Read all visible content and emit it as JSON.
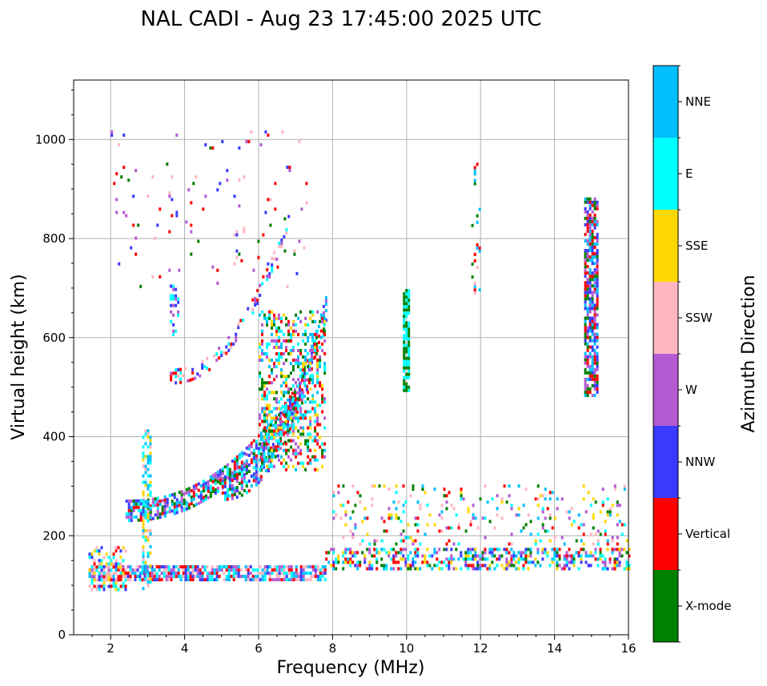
{
  "chart_data": {
    "type": "scatter",
    "title": "NAL CADI - Aug 23 17:45:00 2025 UTC",
    "xlabel": "Frequency (MHz)",
    "ylabel": "Virtual height (km)",
    "xlim": [
      1,
      16
    ],
    "ylim": [
      0,
      1120
    ],
    "xticks": [
      2,
      4,
      6,
      8,
      10,
      12,
      14,
      16
    ],
    "xtick_labels": [
      "2",
      "4",
      "6",
      "8",
      "10",
      "12",
      "14",
      "16"
    ],
    "yticks": [
      0,
      200,
      400,
      600,
      800,
      1000
    ],
    "ytick_labels": [
      "0",
      "200",
      "400",
      "600",
      "800",
      "1000"
    ],
    "grid": true,
    "colorbar": {
      "title": "Azimuth Direction",
      "categories": [
        {
          "label": "X-mode",
          "color": "#008000"
        },
        {
          "label": "Vertical",
          "color": "#ff0000"
        },
        {
          "label": "NNW",
          "color": "#3a3aff"
        },
        {
          "label": "W",
          "color": "#b45ad2"
        },
        {
          "label": "SSW",
          "color": "#ffb6c1"
        },
        {
          "label": "SSE",
          "color": "#ffd700"
        },
        {
          "label": "E",
          "color": "#00ffff"
        },
        {
          "label": "NNE",
          "color": "#00bfff"
        }
      ]
    },
    "bands": [
      {
        "name": "E-layer trace",
        "f": [
          1.4,
          7.8
        ],
        "h": [
          108,
          138
        ],
        "azimuths": [
          "NNW",
          "Vertical",
          "W",
          "NNE",
          "E",
          "SSW"
        ],
        "density": 0.75
      },
      {
        "name": "Low-frequency echoes",
        "f": [
          1.4,
          2.4
        ],
        "h": [
          88,
          175
        ],
        "azimuths": [
          "E",
          "SSE",
          "Vertical",
          "NNW",
          "SSW"
        ],
        "density": 0.45
      },
      {
        "name": "Es layer",
        "f": [
          7.8,
          16.0
        ],
        "h": [
          130,
          175
        ],
        "azimuths": [
          "SSE",
          "E",
          "NNE",
          "Vertical",
          "NNW",
          "X-mode",
          "W"
        ],
        "density": 0.45
      },
      {
        "name": "Es layer upper",
        "f": [
          8.0,
          16.0
        ],
        "h": [
          180,
          300
        ],
        "azimuths": [
          "SSE",
          "E",
          "NNE",
          "Vertical",
          "X-mode",
          "W",
          "SSW"
        ],
        "density": 0.12
      },
      {
        "name": "F-layer O-trace",
        "f": [
          2.4,
          7.0
        ],
        "h_start": 250,
        "h_end": 480,
        "curve": "exp",
        "spread": 45,
        "azimuths": [
          "Vertical",
          "NNW",
          "E",
          "NNE",
          "X-mode",
          "W"
        ],
        "density": 0.7
      },
      {
        "name": "F-layer X-trace",
        "f": [
          5.0,
          7.8
        ],
        "h_start": 300,
        "h_end": 650,
        "curve": "exp",
        "spread": 60,
        "azimuths": [
          "X-mode",
          "Vertical",
          "E",
          "NNE",
          "NNW",
          "W"
        ],
        "density": 0.55
      },
      {
        "name": "Second-hop trace",
        "f": [
          3.6,
          6.8
        ],
        "h_start": 520,
        "h_end": 840,
        "curve": "exp",
        "spread": 30,
        "azimuths": [
          "Vertical",
          "NNW",
          "E",
          "SSW",
          "W"
        ],
        "density": 0.35
      },
      {
        "name": "Spread F",
        "f": [
          6.0,
          7.8
        ],
        "h": [
          330,
          650
        ],
        "azimuths": [
          "Vertical",
          "X-mode",
          "E",
          "NNE",
          "W",
          "SSE"
        ],
        "density": 0.35
      },
      {
        "name": "Vertical streak 3 MHz",
        "f": [
          2.85,
          3.05
        ],
        "h": [
          90,
          410
        ],
        "azimuths": [
          "SSE",
          "E",
          "SSW",
          "NNE"
        ],
        "density": 0.5
      },
      {
        "name": "Vertical streak 3.7 MHz",
        "f": [
          3.6,
          3.8
        ],
        "h": [
          590,
          705
        ],
        "azimuths": [
          "NNW",
          "E",
          "W"
        ],
        "density": 0.45
      },
      {
        "name": "Vertical streak 10 MHz",
        "f": [
          9.9,
          10.05
        ],
        "h": [
          490,
          695
        ],
        "azimuths": [
          "X-mode",
          "E"
        ],
        "density": 0.85
      },
      {
        "name": "Vertical streak 12 MHz",
        "f": [
          11.75,
          11.95
        ],
        "h": [
          680,
          960
        ],
        "azimuths": [
          "Vertical",
          "X-mode",
          "SSW",
          "NNE"
        ],
        "density": 0.12
      },
      {
        "name": "Vertical streak 15 MHz",
        "f": [
          14.8,
          15.15
        ],
        "h": [
          480,
          880
        ],
        "azimuths": [
          "Vertical",
          "NNW",
          "X-mode",
          "W",
          "NNE"
        ],
        "density": 0.75
      },
      {
        "name": "Scattered high echoes",
        "f": [
          2.0,
          7.3
        ],
        "h": [
          700,
          1015
        ],
        "azimuths": [
          "Vertical",
          "NNW",
          "X-mode",
          "W",
          "SSW"
        ],
        "density": 0.03
      }
    ]
  }
}
